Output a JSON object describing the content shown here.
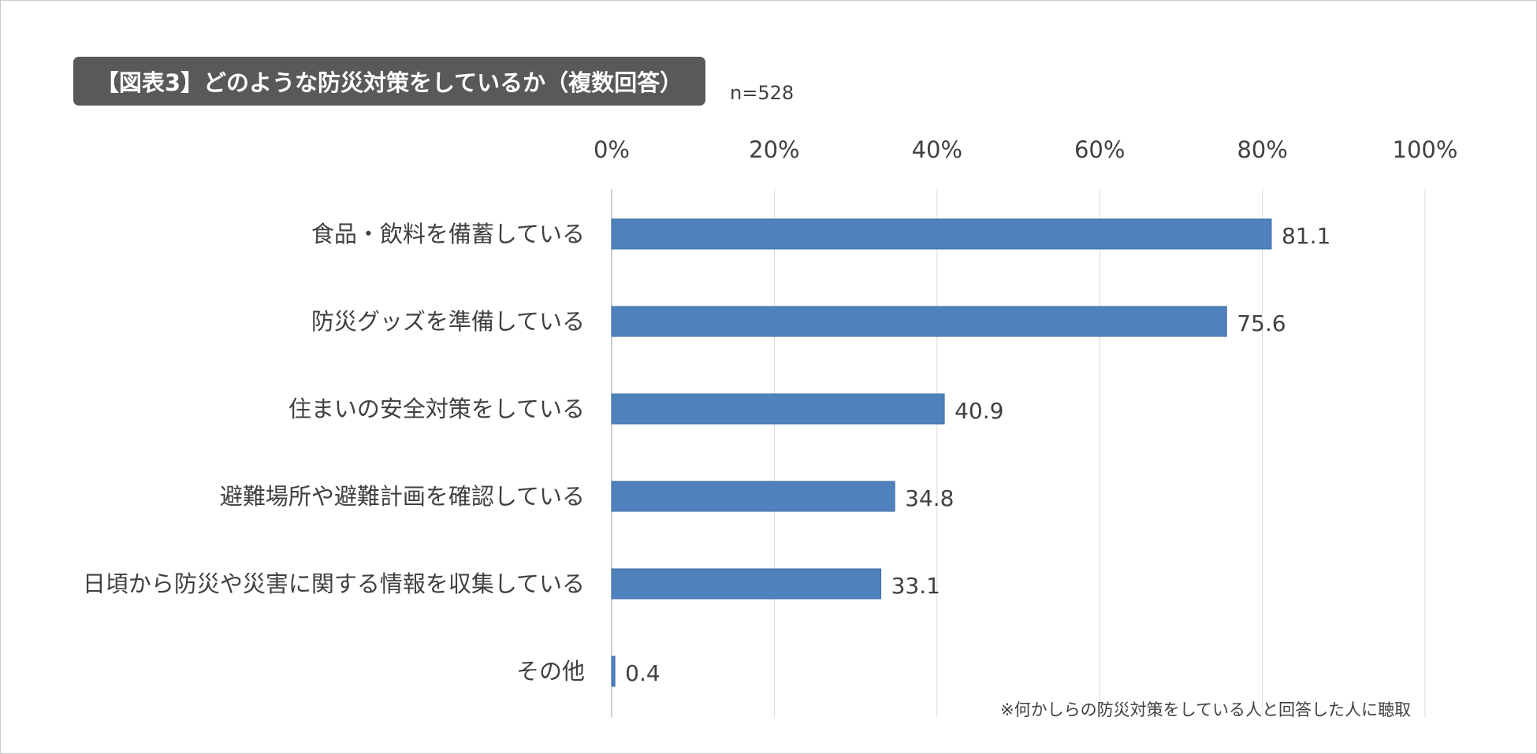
{
  "title": "【図表3】どのような防災対策をしているか（複数回答）",
  "sample_size": "n=528",
  "footnote": "※何かしらの防災対策をしている人と回答した人に聴取",
  "colors": {
    "bar": "#4f81bd",
    "grid": "#d9d9d9",
    "title_bg": "#595959"
  },
  "chart_data": {
    "type": "bar",
    "orientation": "horizontal",
    "xlim": [
      0,
      100
    ],
    "ticks": [
      "0%",
      "20%",
      "40%",
      "60%",
      "80%",
      "100%"
    ],
    "grid": true,
    "categories": [
      "食品・飲料を備蓄している",
      "防災グッズを準備している",
      "住まいの安全対策をしている",
      "避難場所や避難計画を確認している",
      "日頃から防災や災害に関する情報を収集している",
      "その他"
    ],
    "values": [
      81.1,
      75.6,
      40.9,
      34.8,
      33.1,
      0.4
    ],
    "value_labels": [
      "81.1",
      "75.6",
      "40.9",
      "34.8",
      "33.1",
      "0.4"
    ]
  }
}
